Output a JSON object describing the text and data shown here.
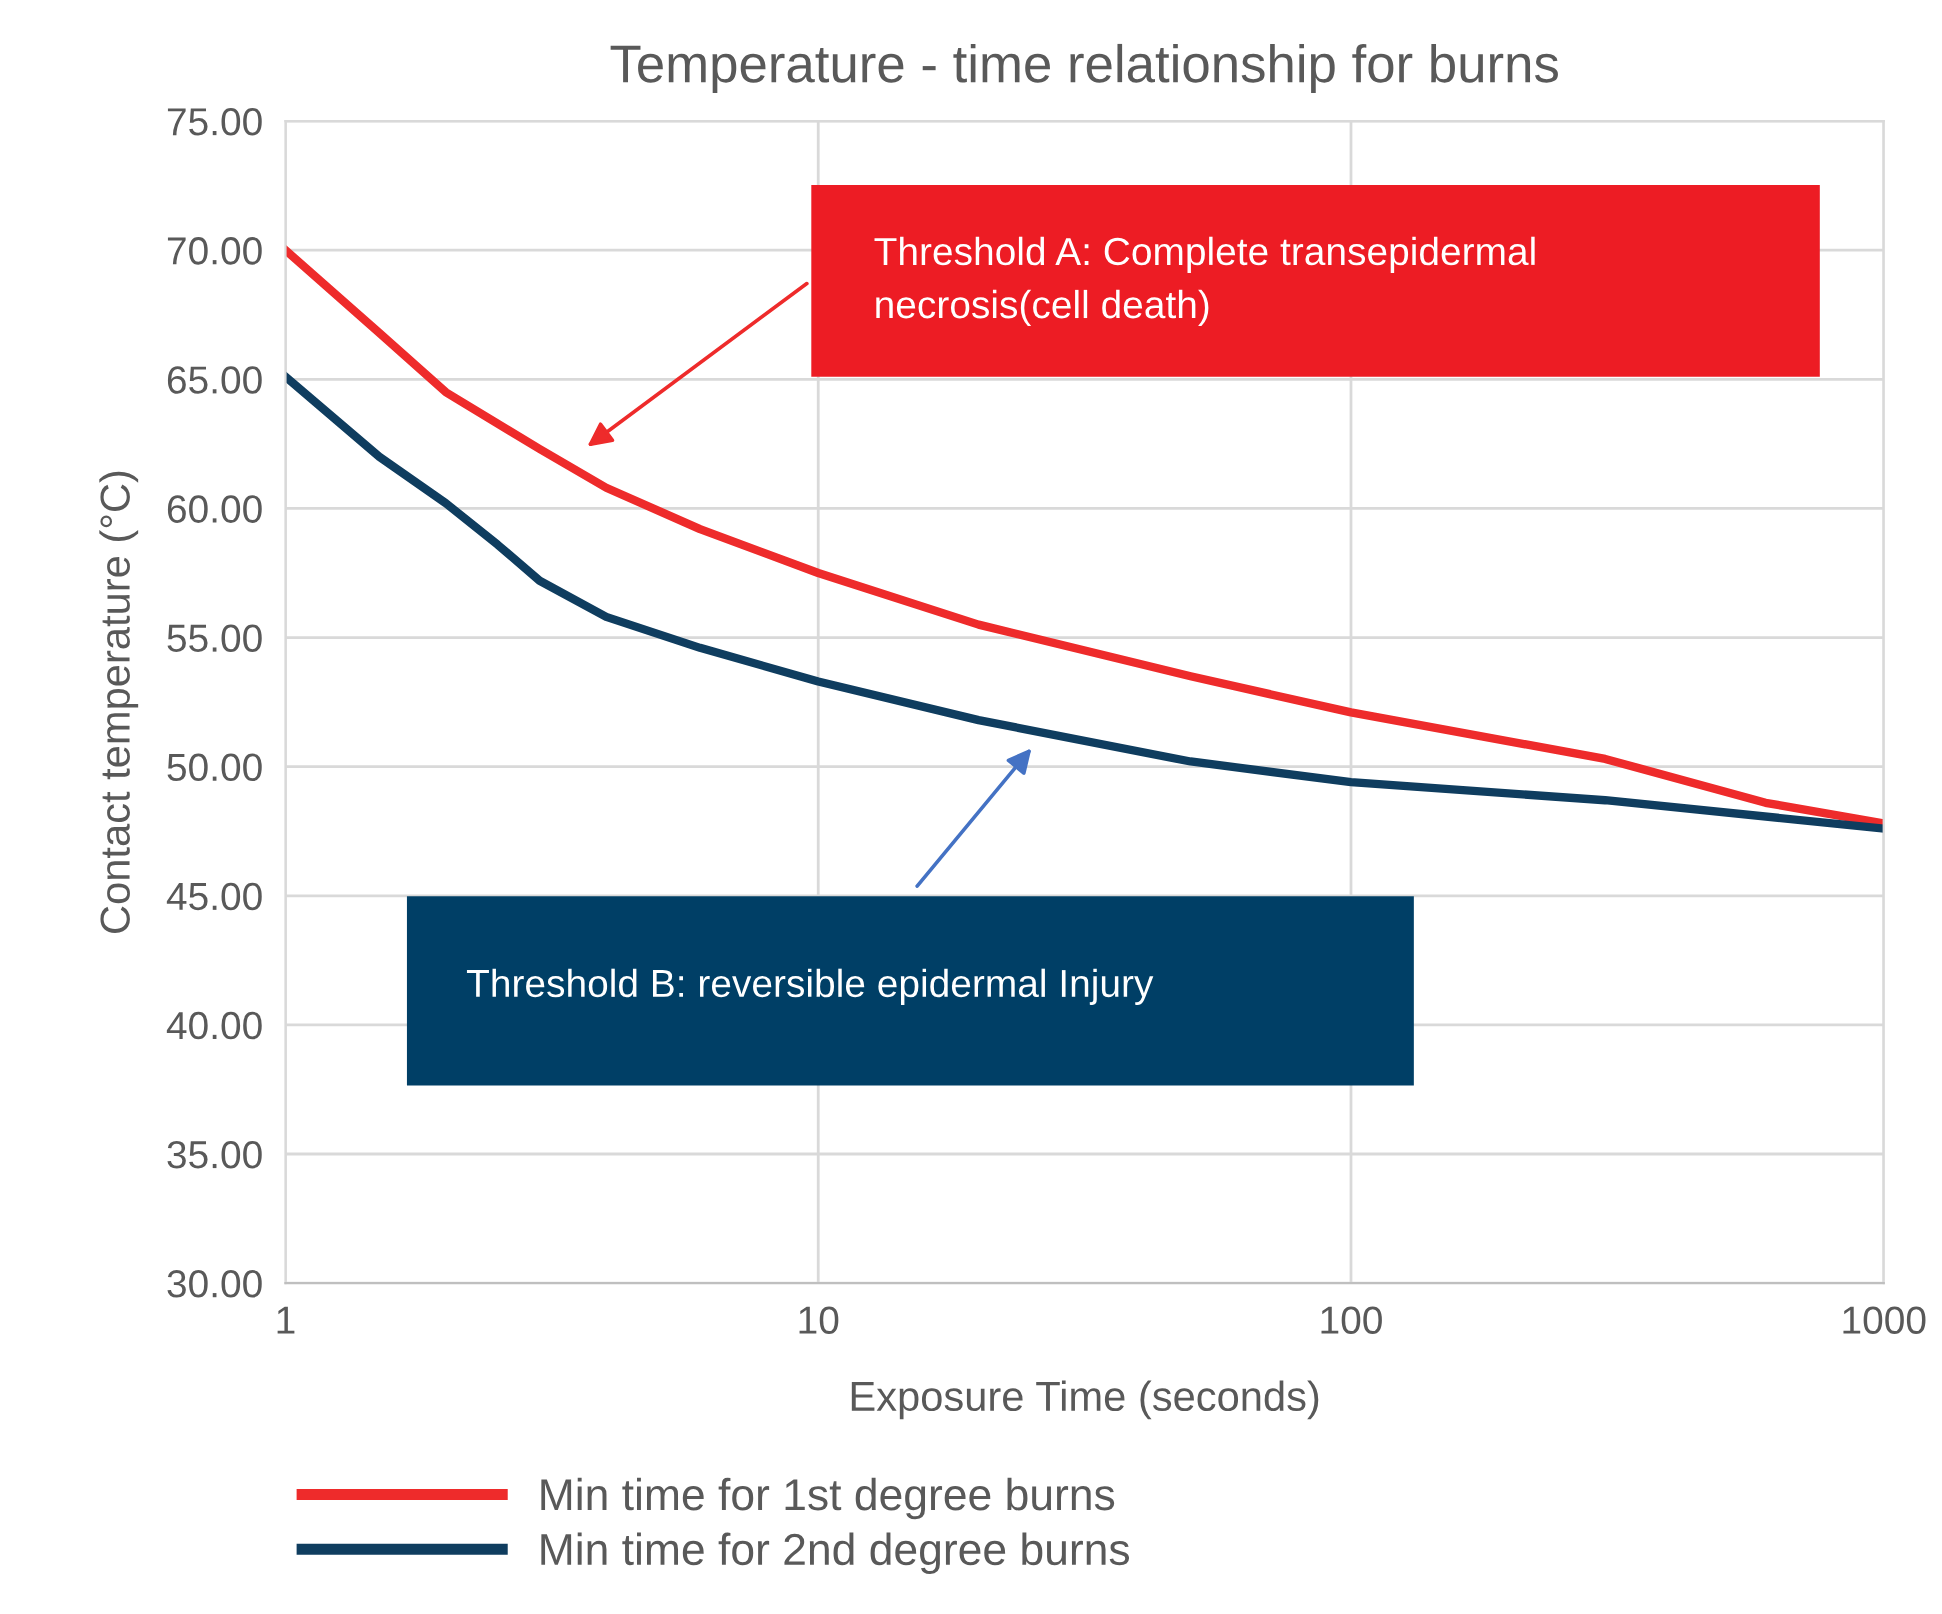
{
  "chart_data": {
    "type": "line",
    "title": "Temperature - time relationship for burns",
    "xlabel": "Exposure Time (seconds)",
    "ylabel": "Contact temperature (°C)",
    "log": "x",
    "xlim": [
      1,
      1000
    ],
    "xticks": [
      1,
      10,
      100,
      1000
    ],
    "ylim": [
      30,
      75
    ],
    "yticks": [
      {
        "value": 30,
        "label": "30.00"
      },
      {
        "value": 35,
        "label": "35.00"
      },
      {
        "value": 40,
        "label": "40.00"
      },
      {
        "value": 45,
        "label": "45.00"
      },
      {
        "value": 50,
        "label": "50.00"
      },
      {
        "value": 55,
        "label": "55.00"
      },
      {
        "value": 60,
        "label": "60.00"
      },
      {
        "value": 65,
        "label": "65.00"
      },
      {
        "value": 70,
        "label": "70.00"
      },
      {
        "value": 75,
        "label": "75.00"
      }
    ],
    "grid": true,
    "legend": "bottom",
    "marker": "none",
    "line_style": "solid",
    "series": [
      {
        "name": "Min time for 1st degree burns",
        "color": "#ee2b2b",
        "x": [
          1,
          1.5,
          2,
          3,
          4,
          6,
          10,
          20,
          50,
          100,
          300,
          600,
          1000
        ],
        "values": [
          70,
          66.8,
          64.5,
          62.3,
          60.8,
          59.2,
          57.5,
          55.5,
          53.5,
          52.1,
          50.3,
          48.6,
          47.8
        ]
      },
      {
        "name": "Min time for 2nd degree burns",
        "color": "#0f3d5f",
        "x": [
          1,
          1.5,
          2,
          2.5,
          3,
          4,
          6,
          10,
          20,
          50,
          100,
          300,
          1000
        ],
        "values": [
          65.1,
          62,
          60.2,
          58.6,
          57.2,
          55.8,
          54.6,
          53.3,
          51.8,
          50.2,
          49.4,
          48.7,
          47.6
        ]
      }
    ],
    "annotations": [
      "Threshold A: Complete transepidermal\nnecrosis(cell death)",
      "Threshold B: reversible epidermal Injury"
    ]
  }
}
